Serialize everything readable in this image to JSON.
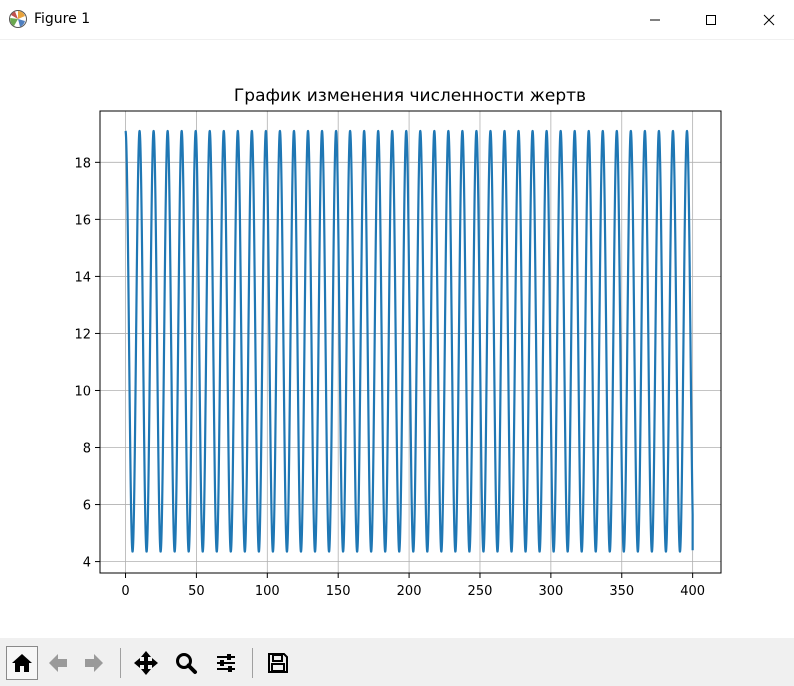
{
  "window": {
    "title": "Figure 1",
    "icon": "matplotlib-icon",
    "controls": [
      "minimize-icon",
      "maximize-icon",
      "close-icon"
    ]
  },
  "toolbar": {
    "buttons": [
      {
        "name": "home-button",
        "icon": "home-icon"
      },
      {
        "name": "back-button",
        "icon": "arrow-left-icon"
      },
      {
        "name": "forward-button",
        "icon": "arrow-right-icon"
      },
      {
        "name": "pan-button",
        "icon": "move-icon"
      },
      {
        "name": "zoom-button",
        "icon": "magnifier-icon"
      },
      {
        "name": "subplots-button",
        "icon": "sliders-icon"
      },
      {
        "name": "save-button",
        "icon": "save-icon"
      }
    ]
  },
  "chart_data": {
    "type": "line",
    "title": "График изменения численности жертв",
    "xlabel": "",
    "ylabel": "",
    "xlim": [
      -18,
      420
    ],
    "ylim": [
      3.6,
      19.8
    ],
    "xticks": [
      0,
      50,
      100,
      150,
      200,
      250,
      300,
      350,
      400
    ],
    "yticks": [
      4,
      6,
      8,
      10,
      12,
      14,
      16,
      18
    ],
    "grid": true,
    "series": [
      {
        "color": "#1f77b4",
        "x_start": 0,
        "x_end": 400,
        "y_max": 19.1,
        "y_min": 4.35,
        "period": 9.9,
        "start_value": 19.1,
        "end_value": 4.4
      }
    ]
  }
}
